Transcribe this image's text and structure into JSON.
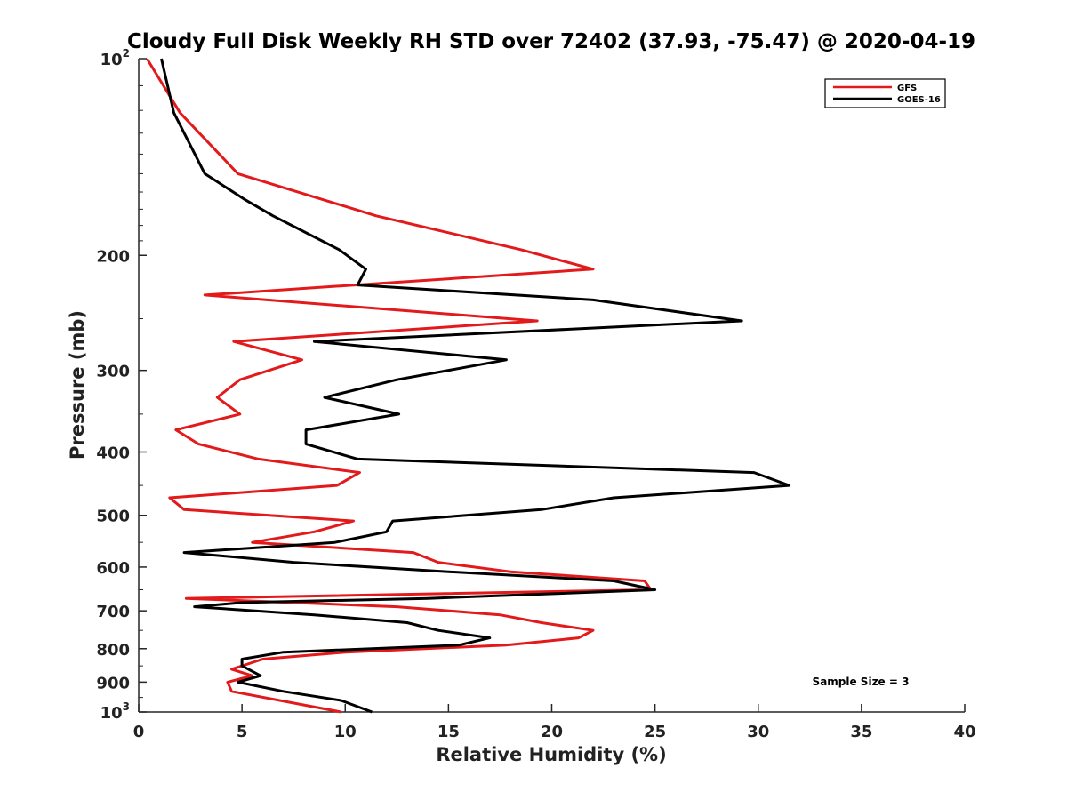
{
  "chart_data": {
    "type": "line",
    "title": "Cloudy Full Disk Weekly RH STD over 72402 (37.93, -75.47) @ 2020-04-19",
    "xlabel": "Relative Humidity (%)",
    "ylabel": "Pressure (mb)",
    "xlim": [
      0,
      40
    ],
    "ylim": [
      100,
      1000
    ],
    "y_scale": "log",
    "y_reversed": true,
    "grid": false,
    "legend_position": "top-right",
    "x_ticks": [
      "0",
      "5",
      "10",
      "15",
      "20",
      "25",
      "30",
      "35",
      "40"
    ],
    "y_ticks": [
      {
        "value": 100,
        "base": "10",
        "exp": "2"
      },
      {
        "value": 200,
        "label": "200"
      },
      {
        "value": 300,
        "label": "300"
      },
      {
        "value": 400,
        "label": "400"
      },
      {
        "value": 500,
        "label": "500"
      },
      {
        "value": 600,
        "label": "600"
      },
      {
        "value": 700,
        "label": "700"
      },
      {
        "value": 800,
        "label": "800"
      },
      {
        "value": 900,
        "label": "900"
      },
      {
        "value": 1000,
        "base": "10",
        "exp": "3"
      }
    ],
    "annotation": "Sample Size = 3",
    "series": [
      {
        "name": "GFS",
        "color": "#e31a1c",
        "points": [
          [
            0.4,
            100
          ],
          [
            2.0,
            121
          ],
          [
            4.8,
            150
          ],
          [
            11.5,
            174
          ],
          [
            18.5,
            196
          ],
          [
            22.0,
            210
          ],
          [
            3.2,
            230
          ],
          [
            19.3,
            252
          ],
          [
            4.6,
            271
          ],
          [
            7.9,
            289
          ],
          [
            4.9,
            310
          ],
          [
            3.8,
            330
          ],
          [
            4.9,
            350
          ],
          [
            1.8,
            370
          ],
          [
            2.9,
            389
          ],
          [
            5.8,
            410
          ],
          [
            10.7,
            430
          ],
          [
            9.6,
            450
          ],
          [
            1.5,
            470
          ],
          [
            2.2,
            490
          ],
          [
            10.4,
            510
          ],
          [
            8.5,
            530
          ],
          [
            5.5,
            550
          ],
          [
            13.3,
            570
          ],
          [
            14.5,
            590
          ],
          [
            18.0,
            610
          ],
          [
            24.5,
            630
          ],
          [
            24.8,
            650
          ],
          [
            2.3,
            670
          ],
          [
            12.5,
            690
          ],
          [
            17.5,
            710
          ],
          [
            19.5,
            730
          ],
          [
            22.0,
            750
          ],
          [
            21.3,
            770
          ],
          [
            17.8,
            790
          ],
          [
            10.0,
            810
          ],
          [
            6.0,
            830
          ],
          [
            4.5,
            860
          ],
          [
            5.5,
            880
          ],
          [
            4.3,
            900
          ],
          [
            4.5,
            930
          ],
          [
            9.8,
            1000
          ]
        ]
      },
      {
        "name": "GOES-16",
        "color": "#000000",
        "points": [
          [
            1.1,
            100
          ],
          [
            1.7,
            121
          ],
          [
            3.2,
            150
          ],
          [
            5.1,
            164
          ],
          [
            6.5,
            174
          ],
          [
            9.7,
            196
          ],
          [
            11.0,
            210
          ],
          [
            10.6,
            222
          ],
          [
            22.0,
            234
          ],
          [
            29.2,
            252
          ],
          [
            8.5,
            271
          ],
          [
            17.8,
            289
          ],
          [
            12.5,
            310
          ],
          [
            9.0,
            330
          ],
          [
            12.6,
            350
          ],
          [
            8.1,
            370
          ],
          [
            8.1,
            389
          ],
          [
            10.6,
            410
          ],
          [
            29.8,
            430
          ],
          [
            31.5,
            450
          ],
          [
            23.0,
            470
          ],
          [
            19.5,
            490
          ],
          [
            12.3,
            510
          ],
          [
            12.0,
            530
          ],
          [
            9.5,
            550
          ],
          [
            2.2,
            570
          ],
          [
            7.5,
            590
          ],
          [
            15.0,
            610
          ],
          [
            23.0,
            630
          ],
          [
            25.0,
            650
          ],
          [
            14.0,
            670
          ],
          [
            5.0,
            680
          ],
          [
            2.7,
            690
          ],
          [
            8.5,
            710
          ],
          [
            13.0,
            730
          ],
          [
            14.5,
            750
          ],
          [
            17.0,
            770
          ],
          [
            15.5,
            790
          ],
          [
            7.0,
            810
          ],
          [
            5.0,
            830
          ],
          [
            5.0,
            850
          ],
          [
            5.9,
            880
          ],
          [
            4.8,
            900
          ],
          [
            7.0,
            930
          ],
          [
            9.8,
            960
          ],
          [
            11.3,
            1000
          ]
        ]
      }
    ]
  }
}
